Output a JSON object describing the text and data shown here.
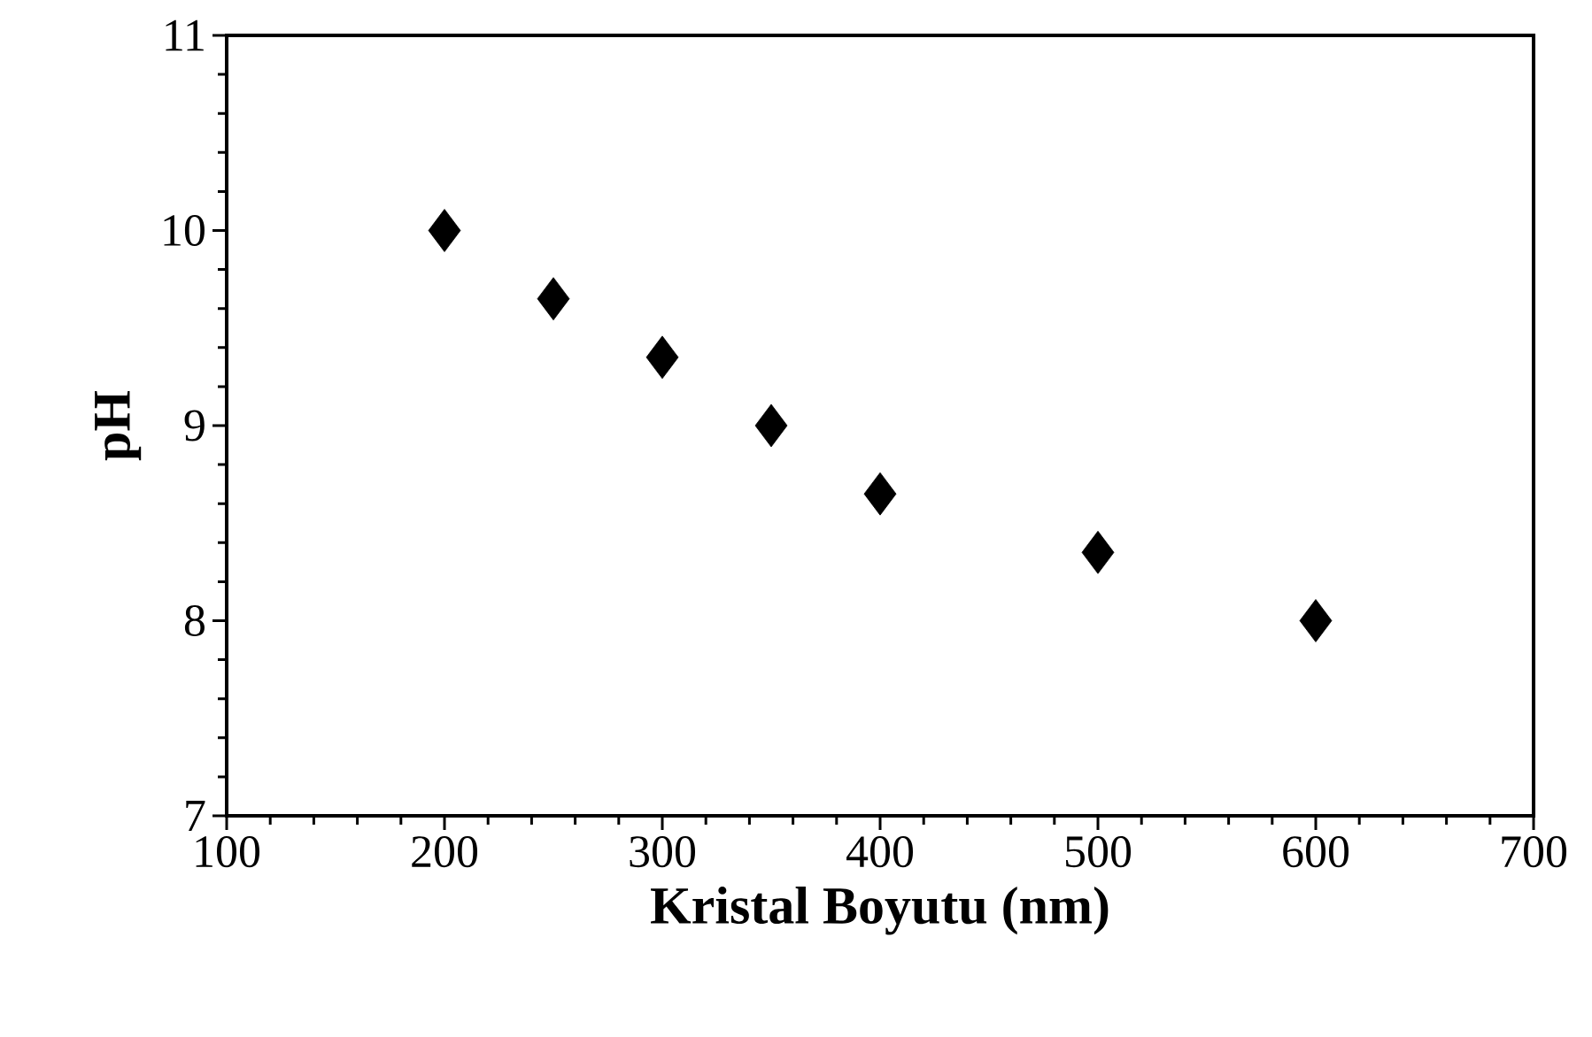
{
  "chart_data": {
    "type": "scatter",
    "xlabel": "Kristal Boyutu (nm)",
    "ylabel": "pH",
    "x": [
      200,
      250,
      300,
      350,
      400,
      500,
      600
    ],
    "series": [
      {
        "color": "#000000",
        "values": [
          10.0,
          9.65,
          9.35,
          9.0,
          8.65,
          8.35,
          8.0
        ]
      }
    ],
    "xlim": [
      100,
      700
    ],
    "xticks": [
      100,
      200,
      300,
      400,
      500,
      600,
      700
    ],
    "ylim": [
      7,
      11
    ],
    "yticks": [
      7,
      8,
      9,
      10,
      11
    ],
    "marker": "diamond"
  }
}
